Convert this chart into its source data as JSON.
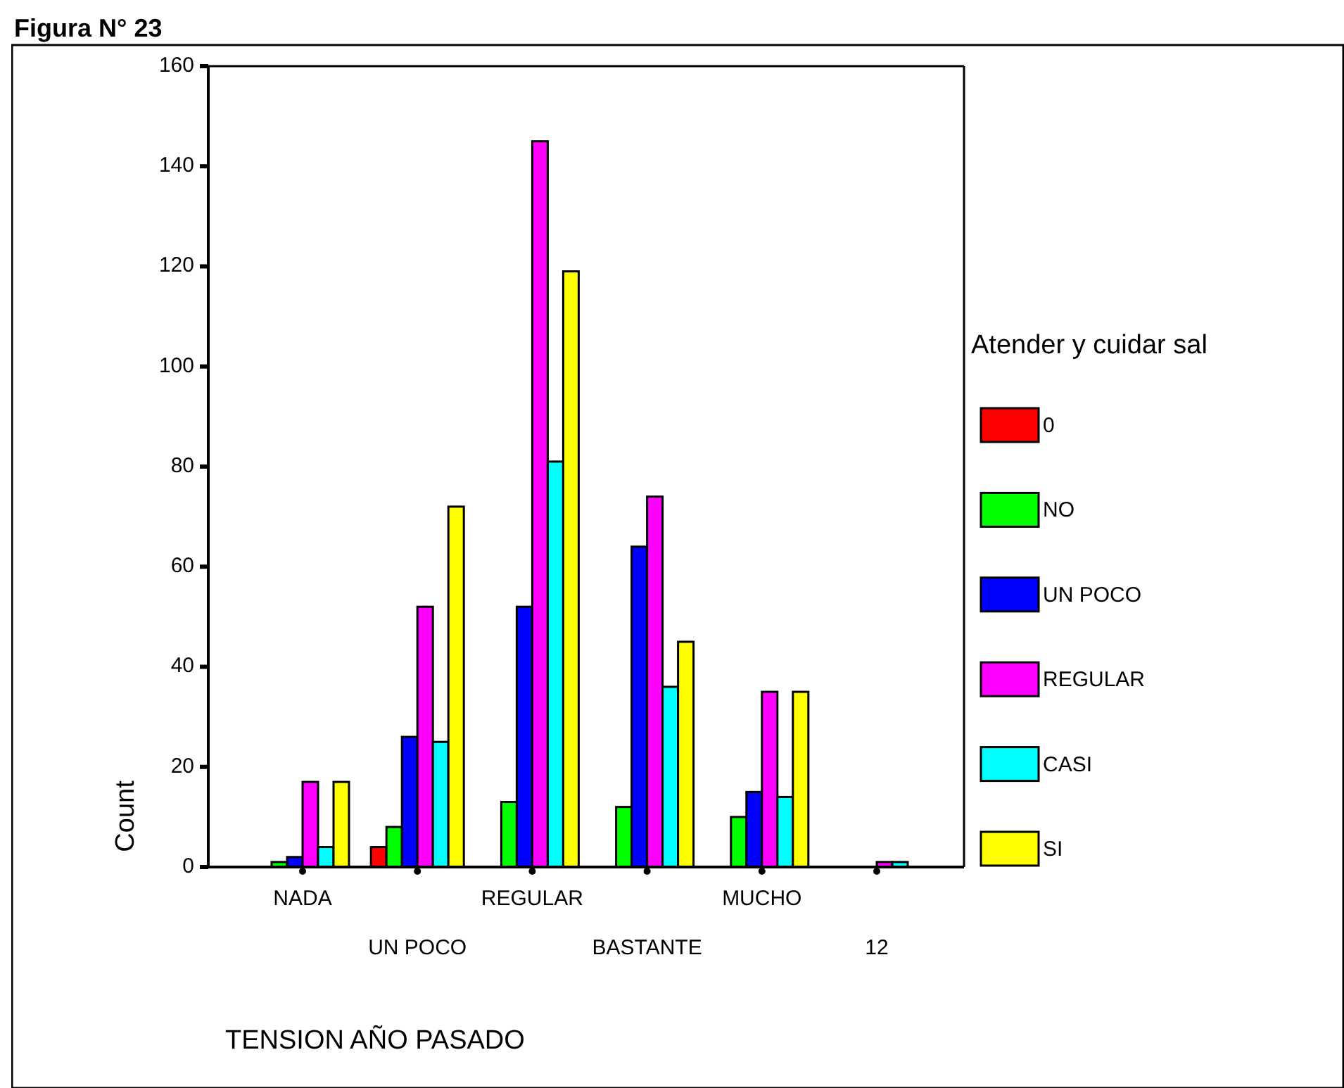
{
  "chart_data": {
    "type": "bar",
    "title": "Figura N° 23",
    "xlabel": "TENSION AÑO PASADO",
    "ylabel": "Count",
    "legend_title": "Atender y cuidar sal",
    "legend": "right",
    "categories": [
      "NADA",
      "UN POCO",
      "REGULAR",
      "BASTANTE",
      "MUCHO",
      "12"
    ],
    "ylim": [
      0,
      160
    ],
    "yticks": [
      0,
      20,
      40,
      60,
      80,
      100,
      120,
      140,
      160
    ],
    "grid": false,
    "series": [
      {
        "name": "0",
        "color": "#ff0000",
        "values": [
          0,
          4,
          0,
          0,
          0,
          0
        ]
      },
      {
        "name": "NO",
        "color": "#00ff00",
        "values": [
          1,
          8,
          13,
          12,
          10,
          0
        ]
      },
      {
        "name": "UN POCO",
        "color": "#0000ff",
        "values": [
          2,
          26,
          52,
          64,
          15,
          0
        ]
      },
      {
        "name": "REGULAR",
        "color": "#ff00ff",
        "values": [
          17,
          52,
          145,
          74,
          35,
          1
        ]
      },
      {
        "name": "CASI",
        "color": "#00ffff",
        "values": [
          4,
          25,
          81,
          36,
          14,
          1
        ]
      },
      {
        "name": "SI",
        "color": "#ffff00",
        "values": [
          17,
          72,
          119,
          45,
          35,
          0
        ]
      }
    ]
  }
}
